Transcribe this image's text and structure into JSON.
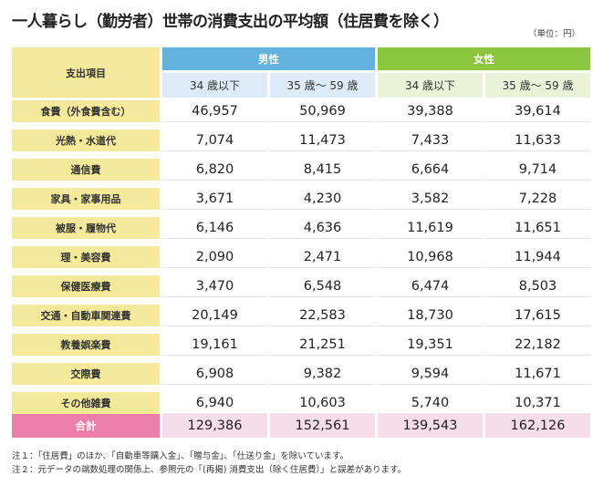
{
  "title": "一人暮らし（勤労者）世帯の消費支出の平均額（住居費を除く）",
  "unit": "（単位：円）",
  "header": {
    "item": "支出項目",
    "male": "男性",
    "female": "女性",
    "male_cols": [
      "34 歳以下",
      "35 歳～ 59 歳"
    ],
    "female_cols": [
      "34 歳以下",
      "35 歳～ 59 歳"
    ]
  },
  "rows": [
    {
      "label": "食費（外食費含む）",
      "values": [
        "46,957",
        "50,969",
        "39,388",
        "39,614"
      ]
    },
    {
      "label": "光熱・水道代",
      "values": [
        "7,074",
        "11,473",
        "7,433",
        "11,633"
      ]
    },
    {
      "label": "通信費",
      "values": [
        "6,820",
        "8,415",
        "6,664",
        "9,714"
      ]
    },
    {
      "label": "家具・家事用品",
      "values": [
        "3,671",
        "4,230",
        "3,582",
        "7,228"
      ]
    },
    {
      "label": "被服・履物代",
      "values": [
        "6,146",
        "4,636",
        "11,619",
        "11,651"
      ]
    },
    {
      "label": "理・美容費",
      "values": [
        "2,090",
        "2,471",
        "10,968",
        "11,944"
      ]
    },
    {
      "label": "保健医療費",
      "values": [
        "3,470",
        "6,548",
        "6,474",
        "8,503"
      ]
    },
    {
      "label": "交通・自動車関連費",
      "values": [
        "20,149",
        "22,583",
        "18,730",
        "17,615"
      ]
    },
    {
      "label": "教養娯楽費",
      "values": [
        "19,161",
        "21,251",
        "19,351",
        "22,182"
      ]
    },
    {
      "label": "交際費",
      "values": [
        "6,908",
        "9,382",
        "9,594",
        "11,671"
      ]
    },
    {
      "label": "その他雑費",
      "values": [
        "6,940",
        "10,603",
        "5,740",
        "10,371"
      ]
    }
  ],
  "total": {
    "label": "合計",
    "values": [
      "129,386",
      "152,561",
      "139,543",
      "162,126"
    ]
  },
  "notes": [
    "注１：「住居費」のほか、「自動車等購入金」、「贈与金」、「仕送り金」を除いています。",
    "注２：元データの端数処理の関係上、参照元の「(再掲) 消費支出（除く住居費）」と誤差があります。"
  ],
  "colors": {
    "label_bg": "#f4e89a",
    "male_header": "#63b3de",
    "female_header": "#8cc63f",
    "male_sub": "#dcebf7",
    "female_sub": "#eaf3d7",
    "total_label": "#ec7fa9",
    "total_value": "#f6dde9"
  }
}
